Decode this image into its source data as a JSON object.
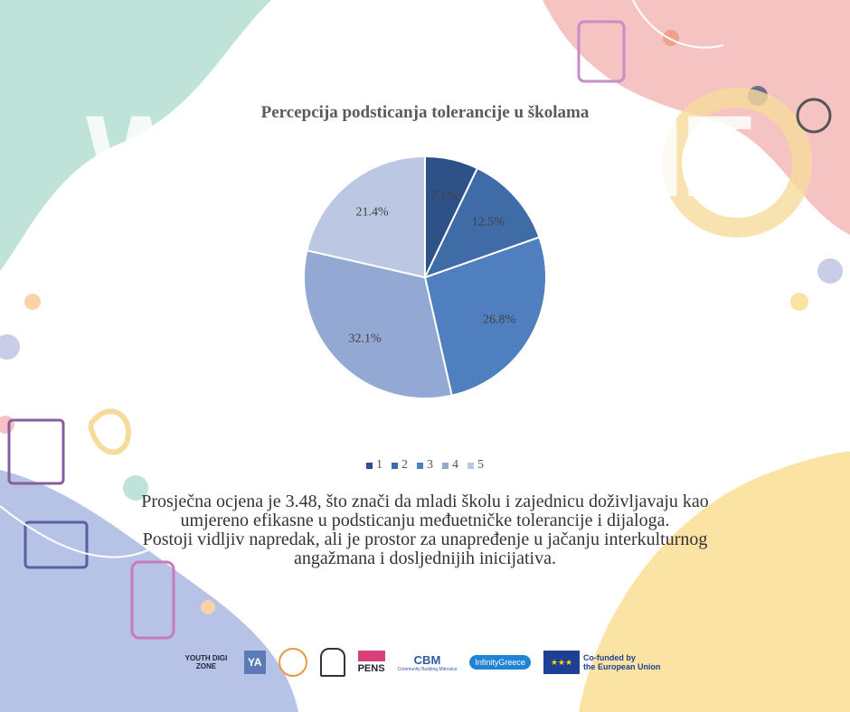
{
  "chart_data": {
    "type": "pie",
    "title": "Percepcija podsticanja tolerancije u školama",
    "categories": [
      "1",
      "2",
      "3",
      "4",
      "5"
    ],
    "values": [
      7.1,
      12.5,
      26.8,
      32.1,
      21.4
    ],
    "data_labels": [
      "7.1%",
      "12.5%",
      "26.8%",
      "32.1%",
      "21.4%"
    ],
    "colors": [
      "#2e5187",
      "#3f6ba7",
      "#4f7fbf",
      "#93a8d2",
      "#bcc8e3"
    ],
    "legend_position": "bottom"
  },
  "summary": {
    "paragraph1": "Prosječna ocjena je 3.48, što znači da mladi školu i zajednicu doživljavaju kao umjereno efikasne u podsticanju međuetničke tolerancije i dijaloga.",
    "paragraph2": "Postoji vidljiv napredak, ali je prostor za unapređenje u jačanju interkulturnog angažmana i dosljednijih inicijativa."
  },
  "logos": {
    "youth_digi_zone": "YOUTH DIGI ZONE",
    "yia": "YA",
    "pens": "PENS",
    "cbm": "CBM",
    "cbm_sub": "Community Building Mitrovica",
    "infinity_greece": "InfinityGreece",
    "eu_line1": "Co-funded by",
    "eu_line2": "the European Union"
  },
  "theme": {
    "teal": "#bfe3d8",
    "pink": "#f6c3c3",
    "yellow": "#fbe3a4",
    "lavender": "#b7c3e6"
  }
}
